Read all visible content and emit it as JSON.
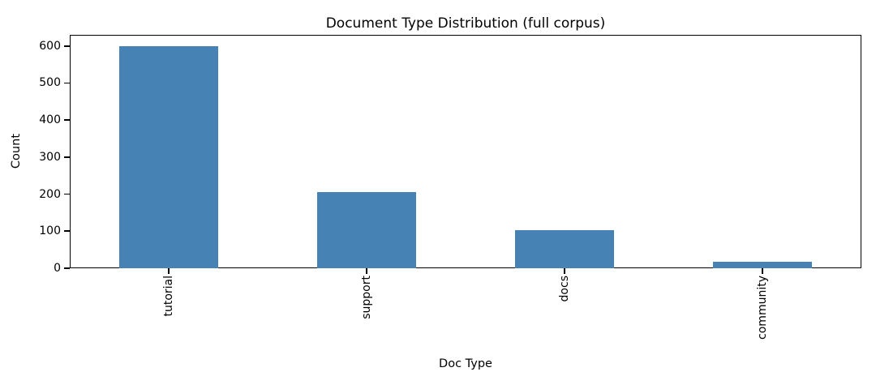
{
  "chart_data": {
    "type": "bar",
    "title": "Document Type Distribution (full corpus)",
    "xlabel": "Doc Type",
    "ylabel": "Count",
    "categories": [
      "tutorial",
      "support",
      "docs",
      "community"
    ],
    "values": [
      600,
      205,
      102,
      18
    ],
    "yticks": [
      0,
      100,
      200,
      300,
      400,
      500,
      600
    ],
    "ylim": [
      0,
      630
    ],
    "bar_color": "#4682b4",
    "grid": false,
    "legend": "none",
    "tick_label_rotation_deg": 90
  }
}
